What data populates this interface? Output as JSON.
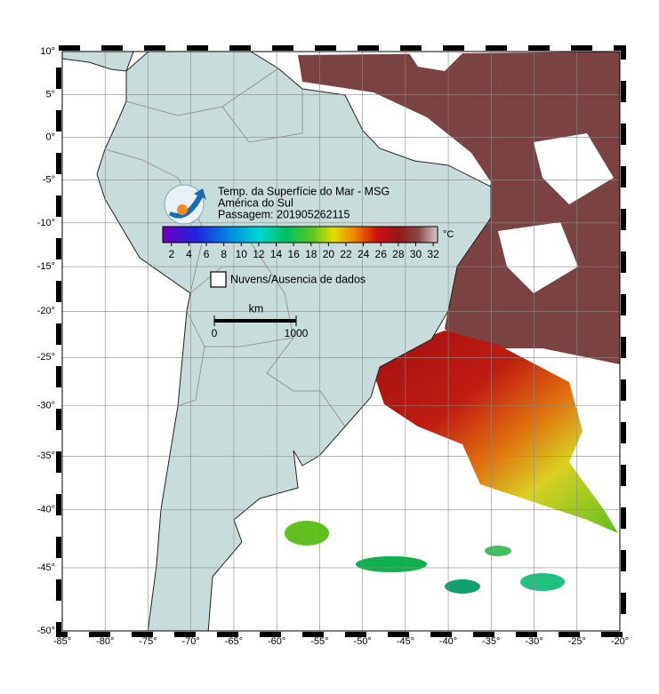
{
  "map_data": {
    "projection": "mercator",
    "xlim": [
      -85,
      -20
    ],
    "ylim": [
      -50,
      10
    ],
    "xticks": [
      {
        "value": -85,
        "label": "-85°"
      },
      {
        "value": -80,
        "label": "-80°"
      },
      {
        "value": -75,
        "label": "-75°"
      },
      {
        "value": -70,
        "label": "-70°"
      },
      {
        "value": -65,
        "label": "-65°"
      },
      {
        "value": -60,
        "label": "-60°"
      },
      {
        "value": -55,
        "label": "-55°"
      },
      {
        "value": -50,
        "label": "-50°"
      },
      {
        "value": -45,
        "label": "-45°"
      },
      {
        "value": -40,
        "label": "-40°"
      },
      {
        "value": -35,
        "label": "-35°"
      },
      {
        "value": -30,
        "label": "-30°"
      },
      {
        "value": -25,
        "label": "-25°"
      },
      {
        "value": -20,
        "label": "-20°"
      }
    ],
    "yticks": [
      {
        "value": 10,
        "label": "10°"
      },
      {
        "value": 5,
        "label": "5°"
      },
      {
        "value": 0,
        "label": "0°"
      },
      {
        "value": -5,
        "label": "-5°"
      },
      {
        "value": -10,
        "label": "-10°"
      },
      {
        "value": -15,
        "label": "-15°"
      },
      {
        "value": -20,
        "label": "-20°"
      },
      {
        "value": -25,
        "label": "-25°"
      },
      {
        "value": -30,
        "label": "-30°"
      },
      {
        "value": -35,
        "label": "-35°"
      },
      {
        "value": -40,
        "label": "-40°"
      },
      {
        "value": -45,
        "label": "-45°"
      },
      {
        "value": -50,
        "label": "-50°"
      }
    ],
    "grid": true,
    "title_lines": [
      "Temp. da Superfície do Mar - MSG",
      "América do Sul",
      "Passagem: 201905262115"
    ],
    "colorbar": {
      "unit": "°C",
      "range": [
        1,
        32.5
      ],
      "ticks": [
        2,
        4,
        6,
        8,
        10,
        12,
        14,
        16,
        18,
        20,
        22,
        24,
        26,
        28,
        30,
        32
      ]
    },
    "legend": "Nuvens/Ausencia de dados",
    "scale_bar": {
      "unit": "km",
      "ticks": [
        0,
        1000
      ]
    }
  }
}
